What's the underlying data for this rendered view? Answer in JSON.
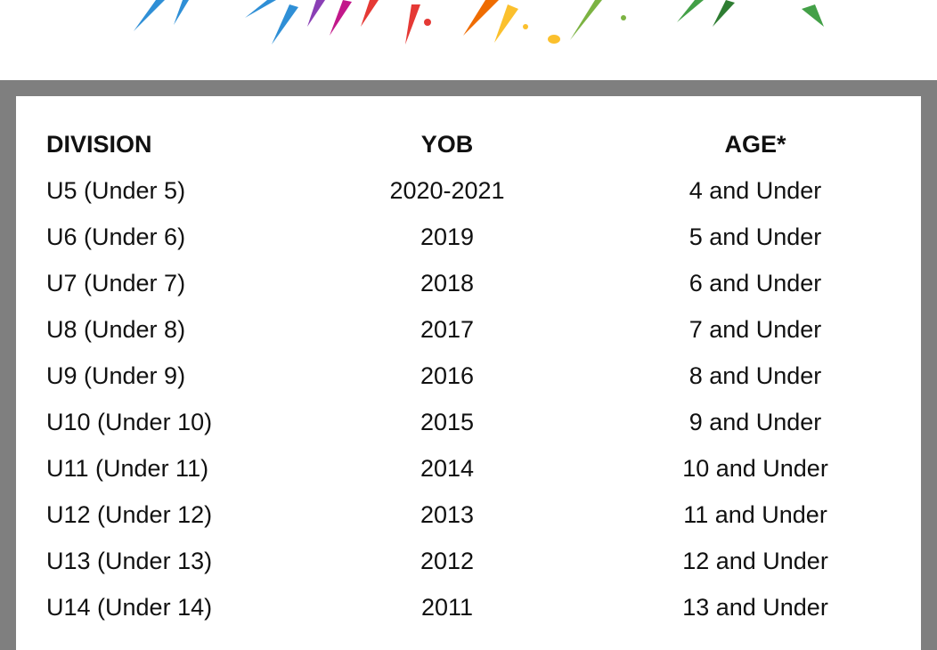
{
  "table": {
    "columns": [
      "DIVISION",
      "YOB",
      "AGE*"
    ],
    "rows": [
      [
        "U5 (Under 5)",
        "2020-2021",
        "4 and Under"
      ],
      [
        "U6 (Under 6)",
        "2019",
        "5 and Under"
      ],
      [
        "U7 (Under 7)",
        "2018",
        "6 and Under"
      ],
      [
        "U8 (Under 8)",
        "2017",
        "7 and Under"
      ],
      [
        "U9 (Under 9)",
        "2016",
        "8 and Under"
      ],
      [
        "U10 (Under 10)",
        "2015",
        "9 and Under"
      ],
      [
        "U11 (Under 11)",
        "2014",
        "10 and Under"
      ],
      [
        "U12 (Under 12)",
        "2013",
        "11 and Under"
      ],
      [
        "U13 (Under 13)",
        "2012",
        "12 and Under"
      ],
      [
        "U14 (Under 14)",
        "2011",
        "13 and Under"
      ]
    ]
  }
}
